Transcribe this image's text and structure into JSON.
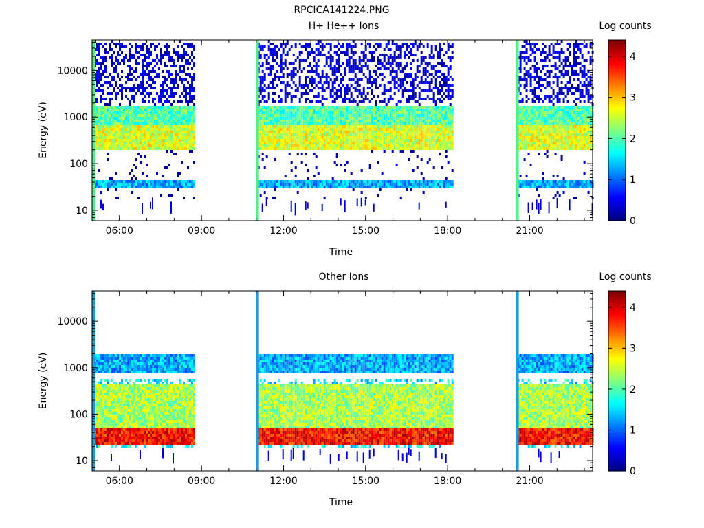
{
  "figure": {
    "title": "RPCICA141224.PNG"
  },
  "chart_data": [
    {
      "type": "heatmap",
      "title": "H+ He++ Ions",
      "xlabel": "Time",
      "ylabel": "Energy (eV)",
      "x_tick_labels": [
        "06:00",
        "09:00",
        "12:00",
        "15:00",
        "18:00",
        "21:00"
      ],
      "x_ticks_hours": [
        6,
        9,
        12,
        15,
        18,
        21
      ],
      "xlim_hours": [
        5.0,
        23.3
      ],
      "y_scale": "log",
      "y_tick_labels": [
        "10",
        "100",
        "1000",
        "10000"
      ],
      "y_ticks": [
        10,
        100,
        1000,
        10000
      ],
      "ylim": [
        6,
        45000
      ],
      "colorbar": {
        "label": "Log counts",
        "ticks": [
          "0",
          "1",
          "2",
          "3",
          "4"
        ],
        "range": [
          0,
          4.4
        ]
      },
      "data_intervals_hours": [
        [
          5.0,
          8.7
        ],
        [
          11.05,
          18.2
        ],
        [
          20.55,
          23.3
        ]
      ],
      "marker_lines_hours": [
        5.05,
        11.05,
        20.55
      ],
      "bands": [
        {
          "energy_range_ev": [
            700,
            1800
          ],
          "log_counts": 2.0
        },
        {
          "energy_range_ev": [
            200,
            700
          ],
          "log_counts": 2.6
        },
        {
          "energy_range_ev": [
            30,
            50
          ],
          "log_counts": 1.3
        },
        {
          "energy_range_ev": [
            2000,
            45000
          ],
          "log_counts": 0.2
        }
      ]
    },
    {
      "type": "heatmap",
      "title": "Other Ions",
      "xlabel": "Time",
      "ylabel": "Energy (eV)",
      "x_tick_labels": [
        "06:00",
        "09:00",
        "12:00",
        "15:00",
        "18:00",
        "21:00"
      ],
      "x_ticks_hours": [
        6,
        9,
        12,
        15,
        18,
        21
      ],
      "xlim_hours": [
        5.0,
        23.3
      ],
      "y_scale": "log",
      "y_tick_labels": [
        "10",
        "100",
        "1000",
        "10000"
      ],
      "y_ticks": [
        10,
        100,
        1000,
        10000
      ],
      "ylim": [
        6,
        45000
      ],
      "colorbar": {
        "label": "Log counts",
        "ticks": [
          "0",
          "1",
          "2",
          "3",
          "4"
        ],
        "range": [
          0,
          4.4
        ]
      },
      "data_intervals_hours": [
        [
          5.0,
          8.7
        ],
        [
          11.05,
          18.2
        ],
        [
          20.55,
          23.3
        ]
      ],
      "marker_lines_hours": [
        5.05,
        11.05,
        20.55
      ],
      "bands": [
        {
          "energy_range_ev": [
            25,
            50
          ],
          "log_counts": 3.8
        },
        {
          "energy_range_ev": [
            50,
            500
          ],
          "log_counts": 2.4
        },
        {
          "energy_range_ev": [
            800,
            2000
          ],
          "log_counts": 1.3
        }
      ]
    }
  ]
}
